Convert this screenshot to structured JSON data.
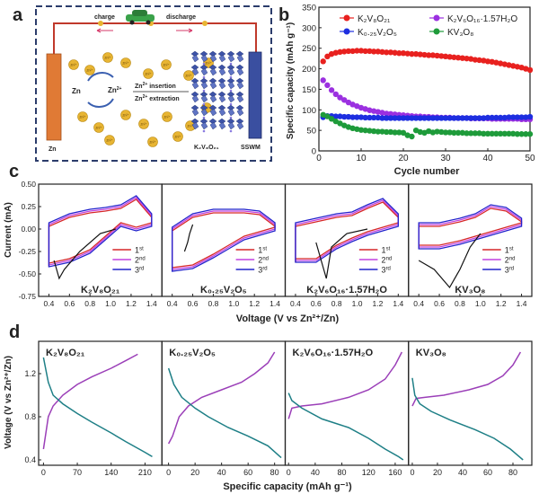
{
  "panel_labels": {
    "a": "a",
    "b": "b",
    "c": "c",
    "d": "d"
  },
  "schematic": {
    "charge": "charge",
    "discharge": "discharge",
    "zn": "Zn",
    "zn2": "Zn",
    "zn2_sup": "2+",
    "zn_electrode": "Zn",
    "sswm": "SSWM",
    "insertion_pre": "Zn",
    "insertion_sup": "2+",
    "insertion_post": " insertion",
    "extraction_pre": "Zn",
    "extraction_sup": "2+",
    "extraction_post": " extraction",
    "cathode_label": "K₂V₈O₂₁",
    "ion": "Zn²⁺",
    "colors": {
      "border": "#2b3c6b",
      "zn_rod": "#e07a35",
      "sswm_rod": "#3a4fa0",
      "ion": "#e8b533",
      "wire": "#c0392b"
    }
  },
  "chart_data": [
    {
      "type": "scatter",
      "panel": "b",
      "xlabel": "Cycle number",
      "ylabel": "Specific capacity (mAh g⁻¹)",
      "xlim": [
        0,
        50
      ],
      "ylim": [
        0,
        350
      ],
      "xticks": [
        0,
        10,
        20,
        30,
        40,
        50
      ],
      "yticks": [
        0,
        50,
        100,
        150,
        200,
        250,
        300,
        350
      ],
      "legend_position": "top",
      "series": [
        {
          "name": "K₂V₈O₂₁",
          "color": "#e8211f",
          "x": [
            1,
            2,
            3,
            4,
            5,
            6,
            7,
            8,
            9,
            10,
            11,
            12,
            13,
            14,
            15,
            16,
            17,
            18,
            19,
            20,
            21,
            22,
            23,
            24,
            25,
            26,
            27,
            28,
            29,
            30,
            31,
            32,
            33,
            34,
            35,
            36,
            37,
            38,
            39,
            40,
            41,
            42,
            43,
            44,
            45,
            46,
            47,
            48,
            49,
            50
          ],
          "values": [
            218,
            230,
            236,
            239,
            241,
            242,
            243,
            243,
            244,
            244,
            243,
            243,
            242,
            242,
            241,
            240,
            240,
            239,
            238,
            238,
            237,
            236,
            236,
            235,
            234,
            233,
            233,
            232,
            231,
            230,
            229,
            228,
            227,
            226,
            225,
            224,
            222,
            221,
            220,
            218,
            217,
            215,
            213,
            211,
            209,
            207,
            205,
            203,
            200,
            197
          ]
        },
        {
          "name": "K₂V₆O₁₆·1.57H₂O",
          "color": "#9b30e0",
          "x": [
            1,
            2,
            3,
            4,
            5,
            6,
            7,
            8,
            9,
            10,
            11,
            12,
            13,
            14,
            15,
            16,
            17,
            18,
            19,
            20,
            21,
            22,
            23,
            24,
            25,
            26,
            27,
            28,
            29,
            30,
            31,
            32,
            33,
            34,
            35,
            36,
            37,
            38,
            39,
            40,
            41,
            42,
            43,
            44,
            45,
            46,
            47,
            48,
            49,
            50
          ],
          "values": [
            172,
            160,
            148,
            138,
            130,
            124,
            118,
            113,
            109,
            105,
            102,
            99,
            97,
            95,
            93,
            91,
            90,
            89,
            88,
            87,
            86,
            85,
            84,
            84,
            83,
            83,
            82,
            82,
            81,
            81,
            81,
            80,
            80,
            80,
            80,
            79,
            79,
            79,
            79,
            79,
            78,
            78,
            78,
            78,
            78,
            78,
            78,
            77,
            77,
            77
          ]
        },
        {
          "name": "K₀.₂₅V₂O₅",
          "color": "#1d2ee0",
          "x": [
            1,
            2,
            3,
            4,
            5,
            6,
            7,
            8,
            9,
            10,
            11,
            12,
            13,
            14,
            15,
            16,
            17,
            18,
            19,
            20,
            21,
            22,
            23,
            24,
            25,
            26,
            27,
            28,
            29,
            30,
            31,
            32,
            33,
            34,
            35,
            36,
            37,
            38,
            39,
            40,
            41,
            42,
            43,
            44,
            45,
            46,
            47,
            48,
            49,
            50
          ],
          "values": [
            82,
            85,
            85,
            84,
            84,
            83,
            83,
            82,
            82,
            82,
            81,
            81,
            81,
            81,
            80,
            80,
            80,
            80,
            80,
            80,
            80,
            80,
            80,
            80,
            80,
            80,
            80,
            80,
            80,
            80,
            80,
            80,
            80,
            80,
            80,
            80,
            80,
            80,
            80,
            81,
            81,
            81,
            81,
            81,
            82,
            82,
            82,
            82,
            82,
            83
          ]
        },
        {
          "name": "KV₃O₈",
          "color": "#1e9b3a",
          "x": [
            1,
            2,
            3,
            4,
            5,
            6,
            7,
            8,
            9,
            10,
            11,
            12,
            13,
            14,
            15,
            16,
            17,
            18,
            19,
            20,
            21,
            22,
            23,
            24,
            25,
            26,
            27,
            28,
            29,
            30,
            31,
            32,
            33,
            34,
            35,
            36,
            37,
            38,
            39,
            40,
            41,
            42,
            43,
            44,
            45,
            46,
            47,
            48,
            49,
            50
          ],
          "values": [
            88,
            84,
            78,
            72,
            67,
            62,
            58,
            55,
            53,
            51,
            50,
            49,
            48,
            47,
            47,
            46,
            46,
            45,
            45,
            44,
            38,
            35,
            50,
            46,
            44,
            48,
            45,
            47,
            46,
            45,
            45,
            44,
            44,
            44,
            43,
            43,
            43,
            43,
            42,
            42,
            42,
            42,
            42,
            42,
            42,
            42,
            41,
            41,
            41,
            41
          ]
        }
      ]
    },
    {
      "type": "line",
      "panel": "c",
      "ylabel": "Current (mA)",
      "xlabel": "Voltage (V vs Zn²⁺/Zn)",
      "ylim": [
        -0.75,
        0.5
      ],
      "yticks": [
        -0.75,
        -0.5,
        -0.25,
        0.0,
        0.25,
        0.5
      ],
      "ytick_labels": [
        "-0.75",
        "-0.50",
        "-0.25",
        "0.00",
        "0.25",
        "0.50"
      ],
      "xlim": [
        0.3,
        1.5
      ],
      "xticks": [
        0.4,
        0.6,
        0.8,
        1.0,
        1.2,
        1.4
      ],
      "subplots": [
        {
          "label": "K₂V₈O₂₁"
        },
        {
          "label": "K₀.₂₅V₂O₅"
        },
        {
          "label": "K₂V₆O₁₆·1.57H₂O"
        },
        {
          "label": "KV₃O₈"
        }
      ],
      "legend": [
        {
          "name": "1st",
          "base": "1",
          "sup": "st",
          "color": "#d62728"
        },
        {
          "name": "2nd",
          "base": "2",
          "sup": "nd",
          "color": "#c040e0"
        },
        {
          "name": "3rd",
          "base": "3",
          "sup": "rd",
          "color": "#2222cc"
        }
      ]
    },
    {
      "type": "line",
      "panel": "d",
      "ylabel": "Voltage (V vs Zn²⁺/Zn)",
      "xlabel": "Specific capacity (mAh g⁻¹)",
      "ylim": [
        0.35,
        1.5
      ],
      "yticks": [
        0.4,
        0.8,
        1.2
      ],
      "subplots": [
        {
          "label": "K₂V₈O₂₁",
          "xlim": [
            -10,
            245
          ],
          "xticks": [
            0,
            70,
            140,
            210
          ],
          "charge": {
            "x": [
              0,
              10,
              20,
              40,
              70,
              100,
              140,
              170,
              195
            ],
            "y": [
              0.5,
              0.8,
              0.9,
              1.0,
              1.1,
              1.17,
              1.25,
              1.32,
              1.38
            ]
          },
          "discharge": {
            "x": [
              0,
              10,
              20,
              40,
              70,
              100,
              140,
              170,
              210,
              225
            ],
            "y": [
              1.35,
              1.12,
              1.0,
              0.92,
              0.83,
              0.75,
              0.65,
              0.57,
              0.47,
              0.43
            ]
          }
        },
        {
          "label": "K₀.₂₅V₂O₅",
          "xlim": [
            -5,
            88
          ],
          "xticks": [
            0,
            20,
            40,
            60,
            80
          ],
          "charge": {
            "x": [
              0,
              3,
              8,
              15,
              25,
              40,
              55,
              65,
              75,
              80
            ],
            "y": [
              0.55,
              0.62,
              0.8,
              0.9,
              0.98,
              1.05,
              1.12,
              1.2,
              1.3,
              1.4
            ]
          },
          "discharge": {
            "x": [
              0,
              4,
              10,
              20,
              30,
              45,
              60,
              75,
              85
            ],
            "y": [
              1.25,
              1.1,
              0.98,
              0.88,
              0.8,
              0.7,
              0.62,
              0.53,
              0.42
            ]
          }
        },
        {
          "label": "K₂V₆O₁₆·1.57H₂O",
          "xlim": [
            -5,
            180
          ],
          "xticks": [
            0,
            40,
            80,
            120,
            160
          ],
          "charge": {
            "x": [
              0,
              5,
              20,
              50,
              90,
              120,
              145,
              160,
              170
            ],
            "y": [
              0.78,
              0.88,
              0.9,
              0.92,
              0.98,
              1.05,
              1.15,
              1.28,
              1.4
            ]
          },
          "discharge": {
            "x": [
              0,
              5,
              20,
              50,
              90,
              120,
              145,
              165,
              172
            ],
            "y": [
              1.02,
              0.95,
              0.88,
              0.78,
              0.7,
              0.6,
              0.5,
              0.43,
              0.4
            ]
          }
        },
        {
          "label": "KV₃O₈",
          "xlim": [
            -3,
            95
          ],
          "xticks": [
            0,
            20,
            40,
            60,
            80
          ],
          "charge": {
            "x": [
              0,
              3,
              10,
              25,
              45,
              60,
              72,
              80,
              86
            ],
            "y": [
              0.9,
              0.97,
              0.98,
              1.0,
              1.05,
              1.1,
              1.18,
              1.28,
              1.4
            ]
          },
          "discharge": {
            "x": [
              0,
              2,
              6,
              15,
              30,
              50,
              65,
              78,
              88
            ],
            "y": [
              1.16,
              1.0,
              0.92,
              0.85,
              0.77,
              0.68,
              0.6,
              0.5,
              0.4
            ]
          }
        }
      ],
      "colors": {
        "charge": "#9b3fb8",
        "discharge": "#1e7f86"
      }
    }
  ]
}
